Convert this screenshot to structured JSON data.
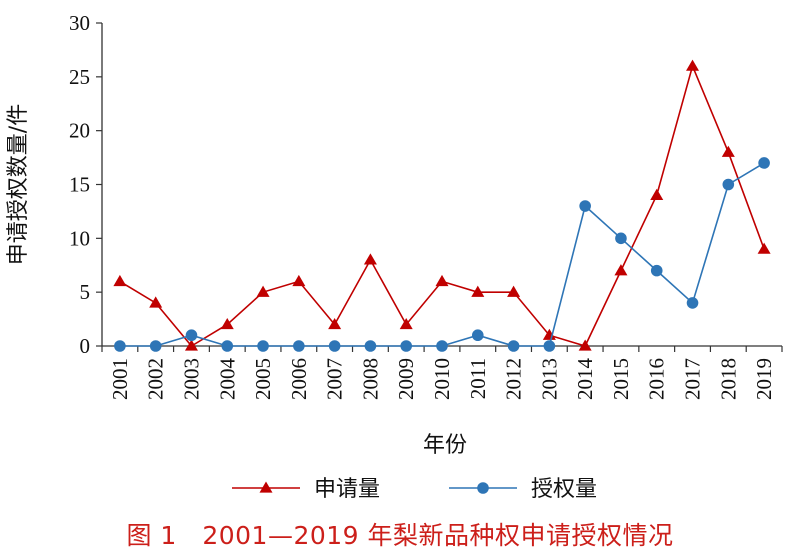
{
  "caption": "图 1　2001—2019 年梨新品种权申请授权情况",
  "colors": {
    "application": "#c00000",
    "grant": "#2e75b6",
    "axis": "#333333",
    "caption": "#cc1f1a"
  },
  "chart_data": {
    "type": "line",
    "xlabel": "年份",
    "ylabel": "申请授权数量/件",
    "ylim": [
      0,
      30
    ],
    "yticks": [
      0,
      5,
      10,
      15,
      20,
      25,
      30
    ],
    "grid": false,
    "legend_position": "bottom",
    "categories": [
      "2001",
      "2002",
      "2003",
      "2004",
      "2005",
      "2006",
      "2007",
      "2008",
      "2009",
      "2010",
      "2011",
      "2012",
      "2013",
      "2014",
      "2015",
      "2016",
      "2017",
      "2018",
      "2019"
    ],
    "series": [
      {
        "name": "申请量",
        "marker": "triangle",
        "color": "#c00000",
        "values": [
          6,
          4,
          0,
          2,
          5,
          6,
          2,
          8,
          2,
          6,
          5,
          5,
          1,
          0,
          7,
          14,
          26,
          18,
          9
        ]
      },
      {
        "name": "授权量",
        "marker": "circle",
        "color": "#2e75b6",
        "values": [
          0,
          0,
          1,
          0,
          0,
          0,
          0,
          0,
          0,
          0,
          1,
          0,
          0,
          13,
          10,
          7,
          4,
          15,
          17
        ]
      }
    ]
  }
}
